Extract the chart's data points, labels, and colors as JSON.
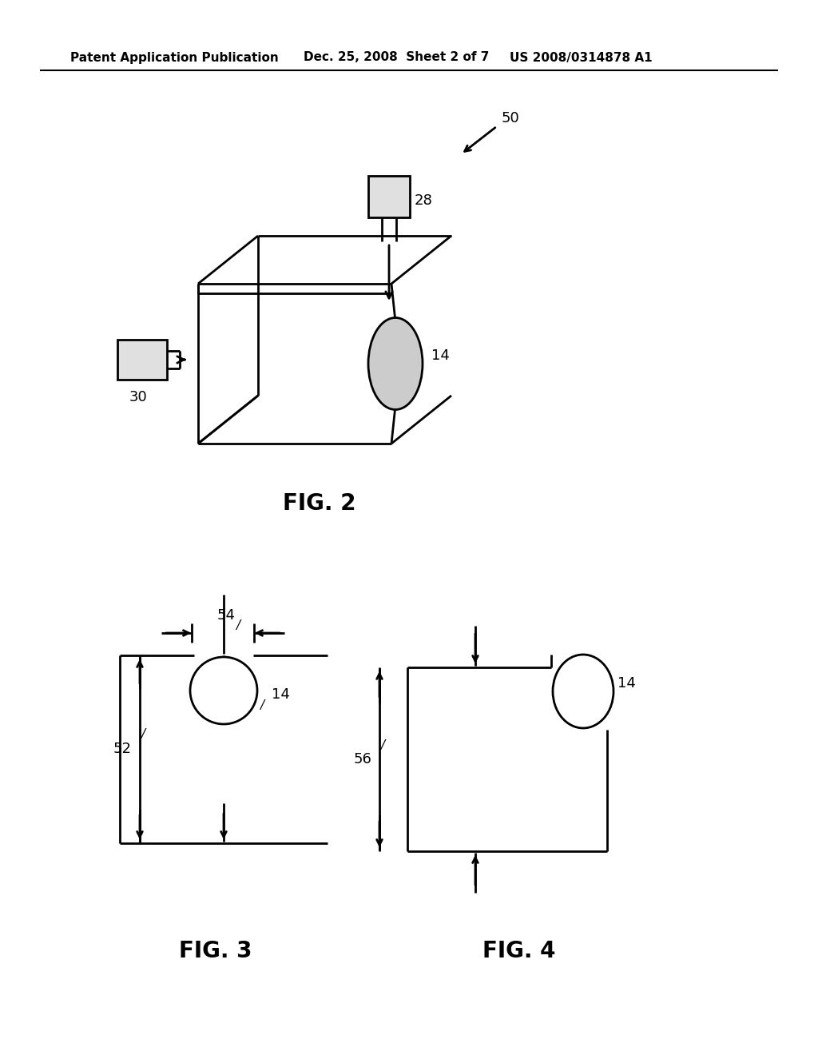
{
  "bg_color": "#ffffff",
  "line_color": "#000000",
  "header_left": "Patent Application Publication",
  "header_mid": "Dec. 25, 2008  Sheet 2 of 7",
  "header_right": "US 2008/0314878 A1",
  "fig2_caption": "FIG. 2",
  "fig3_caption": "FIG. 3",
  "fig4_caption": "FIG. 4",
  "label_50": "50",
  "label_28": "28",
  "label_14_fig2": "14",
  "label_30": "30",
  "label_14_fig3": "14",
  "label_52": "52",
  "label_54": "54",
  "label_14_fig4": "14",
  "label_56": "56"
}
